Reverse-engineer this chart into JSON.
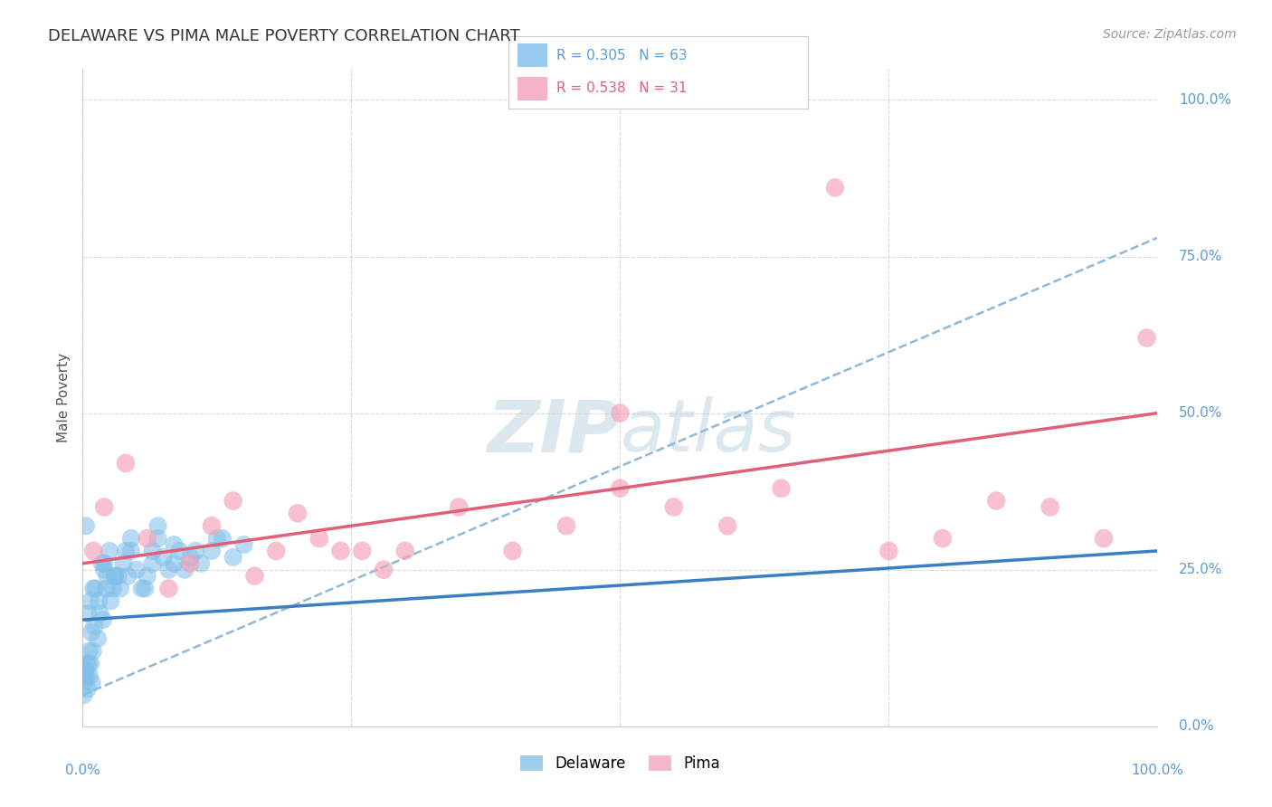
{
  "title": "DELAWARE VS PIMA MALE POVERTY CORRELATION CHART",
  "source": "Source: ZipAtlas.com",
  "ylabel": "Male Poverty",
  "delaware_color": "#7fbfea",
  "pima_color": "#f4a0b8",
  "delaware_line_color": "#3a7fc1",
  "pima_line_color": "#e0607a",
  "trend_dashed_color": "#90b8d8",
  "background_color": "#ffffff",
  "grid_color": "#d0d0d0",
  "axis_tick_color": "#5b9bd5",
  "watermark_color": "#dce8f0",
  "delaware_x": [
    0.5,
    1.0,
    1.5,
    2.0,
    2.5,
    3.0,
    3.5,
    4.0,
    4.5,
    5.0,
    5.5,
    6.0,
    6.5,
    7.0,
    7.5,
    8.0,
    8.5,
    9.0,
    9.5,
    10.0,
    11.0,
    12.0,
    13.0,
    14.0,
    15.0,
    0.3,
    0.7,
    1.2,
    1.8,
    2.3,
    2.8,
    3.3,
    0.2,
    0.4,
    0.6,
    0.8,
    1.1,
    1.4,
    1.6,
    1.9,
    2.2,
    2.6,
    3.8,
    4.2,
    5.8,
    6.5,
    8.5,
    10.5,
    12.5,
    0.1,
    0.15,
    0.25,
    0.35,
    0.45,
    0.55,
    0.65,
    0.75,
    0.85,
    0.95,
    2.0,
    3.0,
    4.5,
    7.0
  ],
  "delaware_y": [
    18,
    22,
    20,
    26,
    28,
    24,
    22,
    28,
    30,
    25,
    22,
    24,
    26,
    30,
    27,
    25,
    29,
    28,
    25,
    27,
    26,
    28,
    30,
    27,
    29,
    32,
    20,
    22,
    26,
    24,
    22,
    24,
    8,
    10,
    12,
    15,
    16,
    14,
    18,
    17,
    22,
    20,
    26,
    24,
    22,
    28,
    26,
    28,
    30,
    5,
    7,
    9,
    8,
    6,
    10,
    8,
    10,
    7,
    12,
    25,
    24,
    28,
    32
  ],
  "pima_x": [
    1.0,
    2.0,
    4.0,
    6.0,
    8.0,
    10.0,
    12.0,
    14.0,
    16.0,
    18.0,
    20.0,
    22.0,
    24.0,
    26.0,
    28.0,
    30.0,
    35.0,
    40.0,
    45.0,
    50.0,
    55.0,
    60.0,
    65.0,
    70.0,
    75.0,
    80.0,
    85.0,
    90.0,
    95.0,
    99.0,
    50.0
  ],
  "pima_y": [
    28,
    35,
    42,
    30,
    22,
    26,
    32,
    36,
    24,
    28,
    34,
    30,
    28,
    28,
    25,
    28,
    35,
    28,
    32,
    38,
    35,
    32,
    38,
    86,
    28,
    30,
    36,
    35,
    30,
    62,
    50
  ],
  "delaware_trend_x": [
    0,
    100
  ],
  "delaware_trend_y": [
    17,
    28
  ],
  "pima_trend_x": [
    0,
    100
  ],
  "pima_trend_y": [
    26,
    50
  ],
  "dashed_trend_x": [
    0,
    100
  ],
  "dashed_trend_y": [
    5,
    78
  ],
  "xlim": [
    0,
    100
  ],
  "ylim": [
    0,
    105
  ],
  "yticks": [
    0,
    25,
    50,
    75,
    100
  ],
  "xtick_show": [
    0,
    100
  ],
  "legend_items": [
    {
      "label": "R = 0.305   N = 63",
      "color": "#7fbfea"
    },
    {
      "label": "R = 0.538   N = 31",
      "color": "#f4a0b8"
    }
  ],
  "bottom_legend": [
    {
      "label": "Delaware",
      "color": "#7fbfea"
    },
    {
      "label": "Pima",
      "color": "#f4a0b8"
    }
  ]
}
